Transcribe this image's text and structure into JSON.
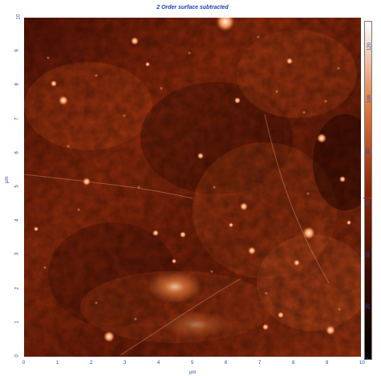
{
  "title": "2 Order surface subtracted",
  "axis": {
    "x_label": "µm",
    "y_label": "µm",
    "x_ticks": [
      "0",
      "1",
      "2",
      "3",
      "4",
      "5",
      "6",
      "7",
      "8",
      "9",
      "10"
    ],
    "y_ticks": [
      "0",
      "1",
      "2",
      "3",
      "4",
      "5",
      "6",
      "7",
      "8",
      "9",
      "10"
    ],
    "colorbar_ticks": [
      "0",
      "20",
      "40",
      "60",
      "80",
      "100",
      "120"
    ],
    "colorbar_marker_value": 62
  },
  "colors": {
    "axis_text": "#2c44a8",
    "title_text": "#1f3fb0",
    "map_dark": "#1c0400",
    "map_mid": "#9a2a07",
    "map_bright": "#ff9a4b",
    "map_white": "#ffffff"
  }
}
